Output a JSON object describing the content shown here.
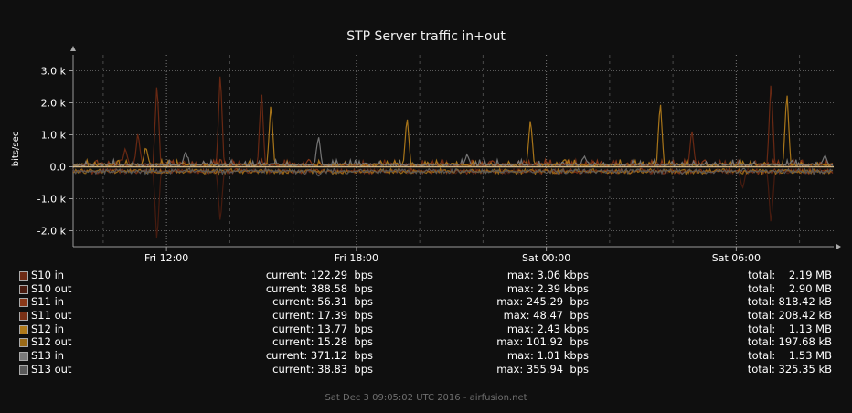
{
  "chart_data": {
    "type": "line",
    "title": "STP Server traffic in+out",
    "ylabel": "bits/sec",
    "y_ticks": [
      "3.0 k",
      "2.0 k",
      "1.0 k",
      "0.0",
      "-1.0 k",
      "-2.0 k"
    ],
    "y_tick_values": [
      3000,
      2000,
      1000,
      0,
      -1000,
      -2000
    ],
    "ylim": [
      -2500,
      3500
    ],
    "x_ticks": [
      "Fri 12:00",
      "Fri 18:00",
      "Sat 00:00",
      "Sat 06:00"
    ],
    "x_tick_hours": [
      12,
      18,
      24,
      30
    ],
    "xlim_hours": [
      9.05,
      33.08
    ],
    "grid": true,
    "series": [
      {
        "name": "S10 in",
        "color": "#6e2a14",
        "current": "current: 122.29  bps",
        "max": "max: 3.06 kbps",
        "total": "total:    2.19 MB",
        "spikes": [
          [
            10.7,
            600
          ],
          [
            11.1,
            1100
          ],
          [
            11.7,
            2700
          ],
          [
            13.7,
            3070
          ],
          [
            15.0,
            2450
          ],
          [
            28.6,
            1200
          ],
          [
            31.1,
            2760
          ]
        ]
      },
      {
        "name": "S10 out",
        "color": "#4a1c10",
        "current": "current: 388.58  bps",
        "max": "max: 2.39 kbps",
        "total": "total:    2.90 MB",
        "spikes": [
          [
            11.7,
            -2400
          ],
          [
            13.7,
            -1800
          ],
          [
            31.1,
            -1850
          ],
          [
            30.2,
            -700
          ]
        ]
      },
      {
        "name": "S11 in",
        "color": "#8a3818",
        "current": "current: 56.31  bps",
        "max": "max: 245.29  bps",
        "total": "total: 818.42 kB",
        "spikes": [
          [
            12.1,
            220
          ],
          [
            16.5,
            245
          ],
          [
            22.3,
            200
          ],
          [
            29.0,
            230
          ]
        ]
      },
      {
        "name": "S11 out",
        "color": "#7a3016",
        "current": "current: 17.39  bps",
        "max": "max: 48.47  bps",
        "total": "total: 208.42 kB",
        "spikes": [
          [
            14.2,
            -48
          ],
          [
            27.0,
            -40
          ]
        ]
      },
      {
        "name": "S12 in",
        "color": "#b07a1a",
        "current": "current: 13.77  bps",
        "max": "max: 2.43 kbps",
        "total": "total:    1.13 MB",
        "spikes": [
          [
            11.35,
            650
          ],
          [
            15.3,
            2040
          ],
          [
            19.6,
            1600
          ],
          [
            23.5,
            1550
          ],
          [
            27.6,
            2100
          ],
          [
            31.6,
            2420
          ]
        ]
      },
      {
        "name": "S12 out",
        "color": "#9a6a18",
        "current": "current: 15.28  bps",
        "max": "max: 101.92  bps",
        "total": "total: 197.68 kB",
        "spikes": [
          [
            15.3,
            -100
          ],
          [
            23.5,
            -90
          ],
          [
            31.6,
            -95
          ]
        ]
      },
      {
        "name": "S13 in",
        "color": "#7a7a7a",
        "current": "current: 371.12  bps",
        "max": "max: 1.01 kbps",
        "total": "total:    1.53 MB",
        "spikes": [
          [
            12.6,
            500
          ],
          [
            16.8,
            1000
          ],
          [
            21.5,
            400
          ],
          [
            25.2,
            350
          ],
          [
            32.8,
            380
          ]
        ]
      },
      {
        "name": "S13 out",
        "color": "#5a5a5a",
        "current": "current: 38.83  bps",
        "max": "max: 355.94  bps",
        "total": "total: 325.35 kB",
        "spikes": [
          [
            16.8,
            -300
          ],
          [
            24.0,
            -200
          ]
        ]
      }
    ]
  },
  "footer": "Sat Dec  3 09:05:02 UTC 2016 - airfusion.net"
}
